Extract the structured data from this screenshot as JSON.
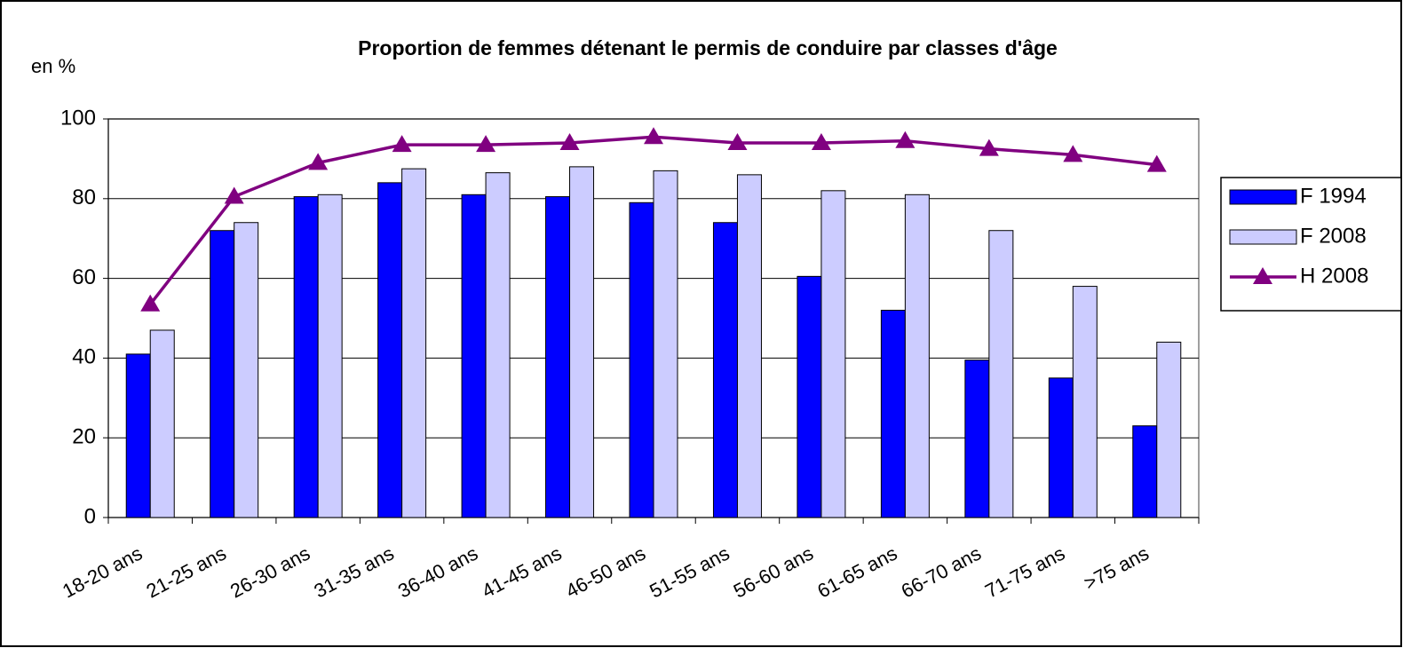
{
  "chart_data": {
    "type": "bar",
    "title": "Proportion de femmes détenant le permis de conduire par classes d'âge",
    "y_label": "en %",
    "categories": [
      "18-20 ans",
      "21-25 ans",
      "26-30 ans",
      "31-35 ans",
      "36-40 ans",
      "41-45 ans",
      "46-50 ans",
      "51-55 ans",
      "56-60 ans",
      "61-65 ans",
      "66-70 ans",
      "71-75 ans",
      ">75 ans"
    ],
    "series": [
      {
        "name": "F 1994",
        "color": "#0000ff",
        "values": [
          41,
          72,
          80.5,
          84,
          81,
          80.5,
          79,
          74,
          60.5,
          52,
          39.5,
          35,
          23
        ]
      },
      {
        "name": "F 2008",
        "color": "#ccccff",
        "values": [
          47,
          74,
          81,
          87.5,
          86.5,
          88,
          87,
          86,
          82,
          81,
          72,
          58,
          44
        ]
      },
      {
        "name": "H 2008",
        "color": "#800080",
        "type": "line",
        "values": [
          53.5,
          80.5,
          89,
          93.5,
          93.5,
          94,
          95.5,
          94,
          94,
          94.5,
          92.5,
          91,
          88.5
        ]
      }
    ],
    "ylim": [
      0,
      100
    ],
    "yticks": [
      0,
      20,
      40,
      60,
      80,
      100
    ],
    "grid": true,
    "legend": "right"
  }
}
